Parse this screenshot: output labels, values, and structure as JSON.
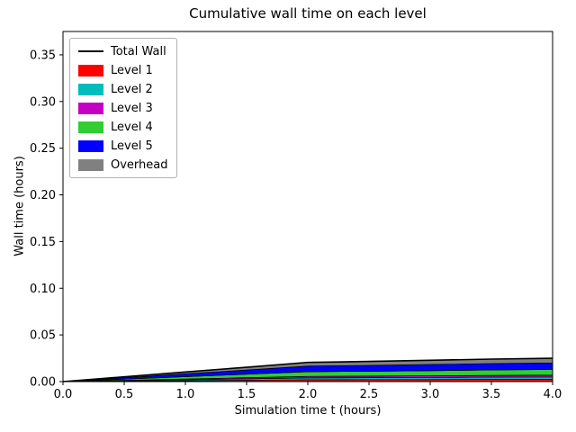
{
  "chart_data": {
    "type": "area",
    "stacked": true,
    "title": "Cumulative wall time on each level",
    "xlabel": "Simulation time t (hours)",
    "ylabel": "Wall time (hours)",
    "xlim": [
      0,
      4
    ],
    "ylim": [
      0,
      0.375
    ],
    "grid": false,
    "xticks": [
      0.0,
      0.5,
      1.0,
      1.5,
      2.0,
      2.5,
      3.0,
      3.5,
      4.0
    ],
    "xtick_labels": [
      "0.0",
      "0.5",
      "1.0",
      "1.5",
      "2.0",
      "2.5",
      "3.0",
      "3.5",
      "4.0"
    ],
    "yticks": [
      0.0,
      0.05,
      0.1,
      0.15,
      0.2,
      0.25,
      0.3,
      0.35
    ],
    "ytick_labels": [
      "0.00",
      "0.05",
      "0.10",
      "0.15",
      "0.20",
      "0.25",
      "0.30",
      "0.35"
    ],
    "x": [
      0.0,
      0.5,
      1.0,
      1.5,
      2.0,
      2.5,
      3.0,
      3.5,
      4.0
    ],
    "series": [
      {
        "name": "Level 1",
        "color": "#ff0000",
        "values": [
          0,
          0.0005,
          0.001,
          0.0015,
          0.002,
          0.0021,
          0.0022,
          0.0024,
          0.0025
        ]
      },
      {
        "name": "Level 2",
        "color": "#00bcbc",
        "values": [
          0,
          0.0005,
          0.001,
          0.0015,
          0.002,
          0.0021,
          0.0022,
          0.0024,
          0.0025
        ]
      },
      {
        "name": "Level 3",
        "color": "#c300c3",
        "values": [
          0,
          0.0004,
          0.0008,
          0.0012,
          0.0016,
          0.0017,
          0.0018,
          0.0019,
          0.002
        ]
      },
      {
        "name": "Level 4",
        "color": "#32cd32",
        "values": [
          0,
          0.0012,
          0.0025,
          0.0037,
          0.005,
          0.0052,
          0.0055,
          0.0058,
          0.006
        ]
      },
      {
        "name": "Level 5",
        "color": "#0000ff",
        "values": [
          0,
          0.0015,
          0.003,
          0.0045,
          0.006,
          0.0063,
          0.0066,
          0.0068,
          0.007
        ]
      },
      {
        "name": "Overhead",
        "color": "#808080",
        "values": [
          0,
          0.001,
          0.002,
          0.003,
          0.004,
          0.0042,
          0.0045,
          0.0048,
          0.005
        ]
      }
    ],
    "total_line": {
      "name": "Total Wall",
      "color": "#000000"
    },
    "legend": {
      "position": "upper left",
      "entries": [
        {
          "label": "Total Wall",
          "type": "line",
          "color": "#000000"
        },
        {
          "label": "Level 1",
          "type": "patch",
          "color": "#ff0000"
        },
        {
          "label": "Level 2",
          "type": "patch",
          "color": "#00bcbc"
        },
        {
          "label": "Level 3",
          "type": "patch",
          "color": "#c300c3"
        },
        {
          "label": "Level 4",
          "type": "patch",
          "color": "#32cd32"
        },
        {
          "label": "Level 5",
          "type": "patch",
          "color": "#0000ff"
        },
        {
          "label": "Overhead",
          "type": "patch",
          "color": "#808080"
        }
      ]
    }
  }
}
